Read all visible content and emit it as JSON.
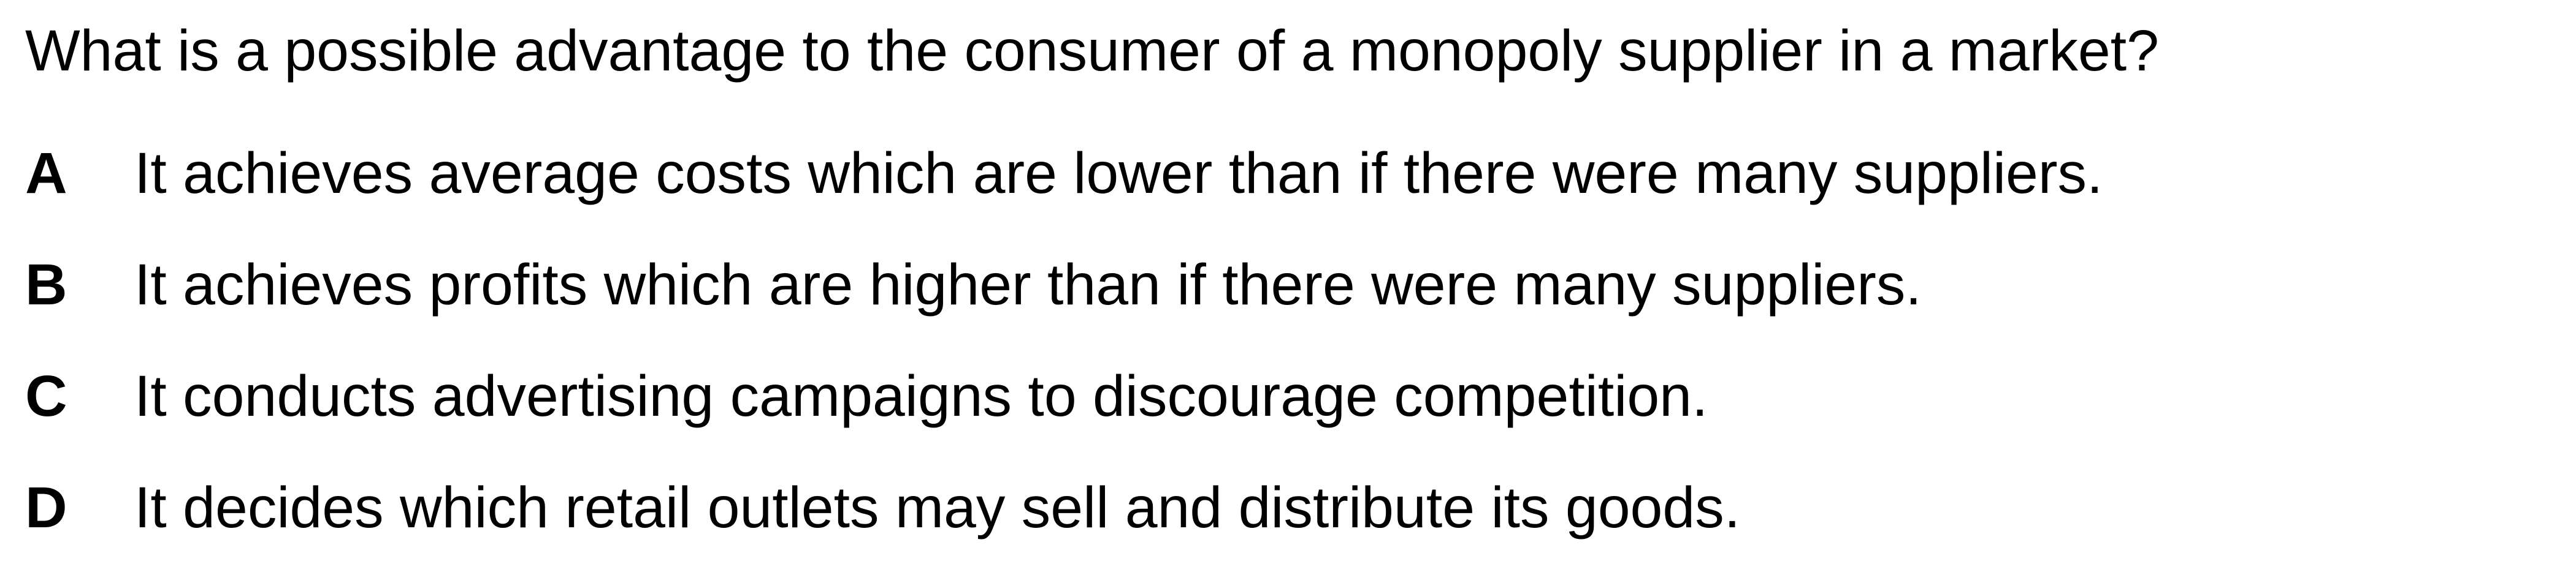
{
  "question": "What is a possible advantage to the consumer of a monopoly supplier in a market?",
  "options": [
    {
      "letter": "A",
      "text": "It achieves average costs which are lower than if there were many suppliers."
    },
    {
      "letter": "B",
      "text": "It achieves profits which are higher than if there were many suppliers."
    },
    {
      "letter": "C",
      "text": "It conducts advertising campaigns to discourage competition."
    },
    {
      "letter": "D",
      "text": "It decides which retail outlets may sell and distribute its goods."
    }
  ]
}
